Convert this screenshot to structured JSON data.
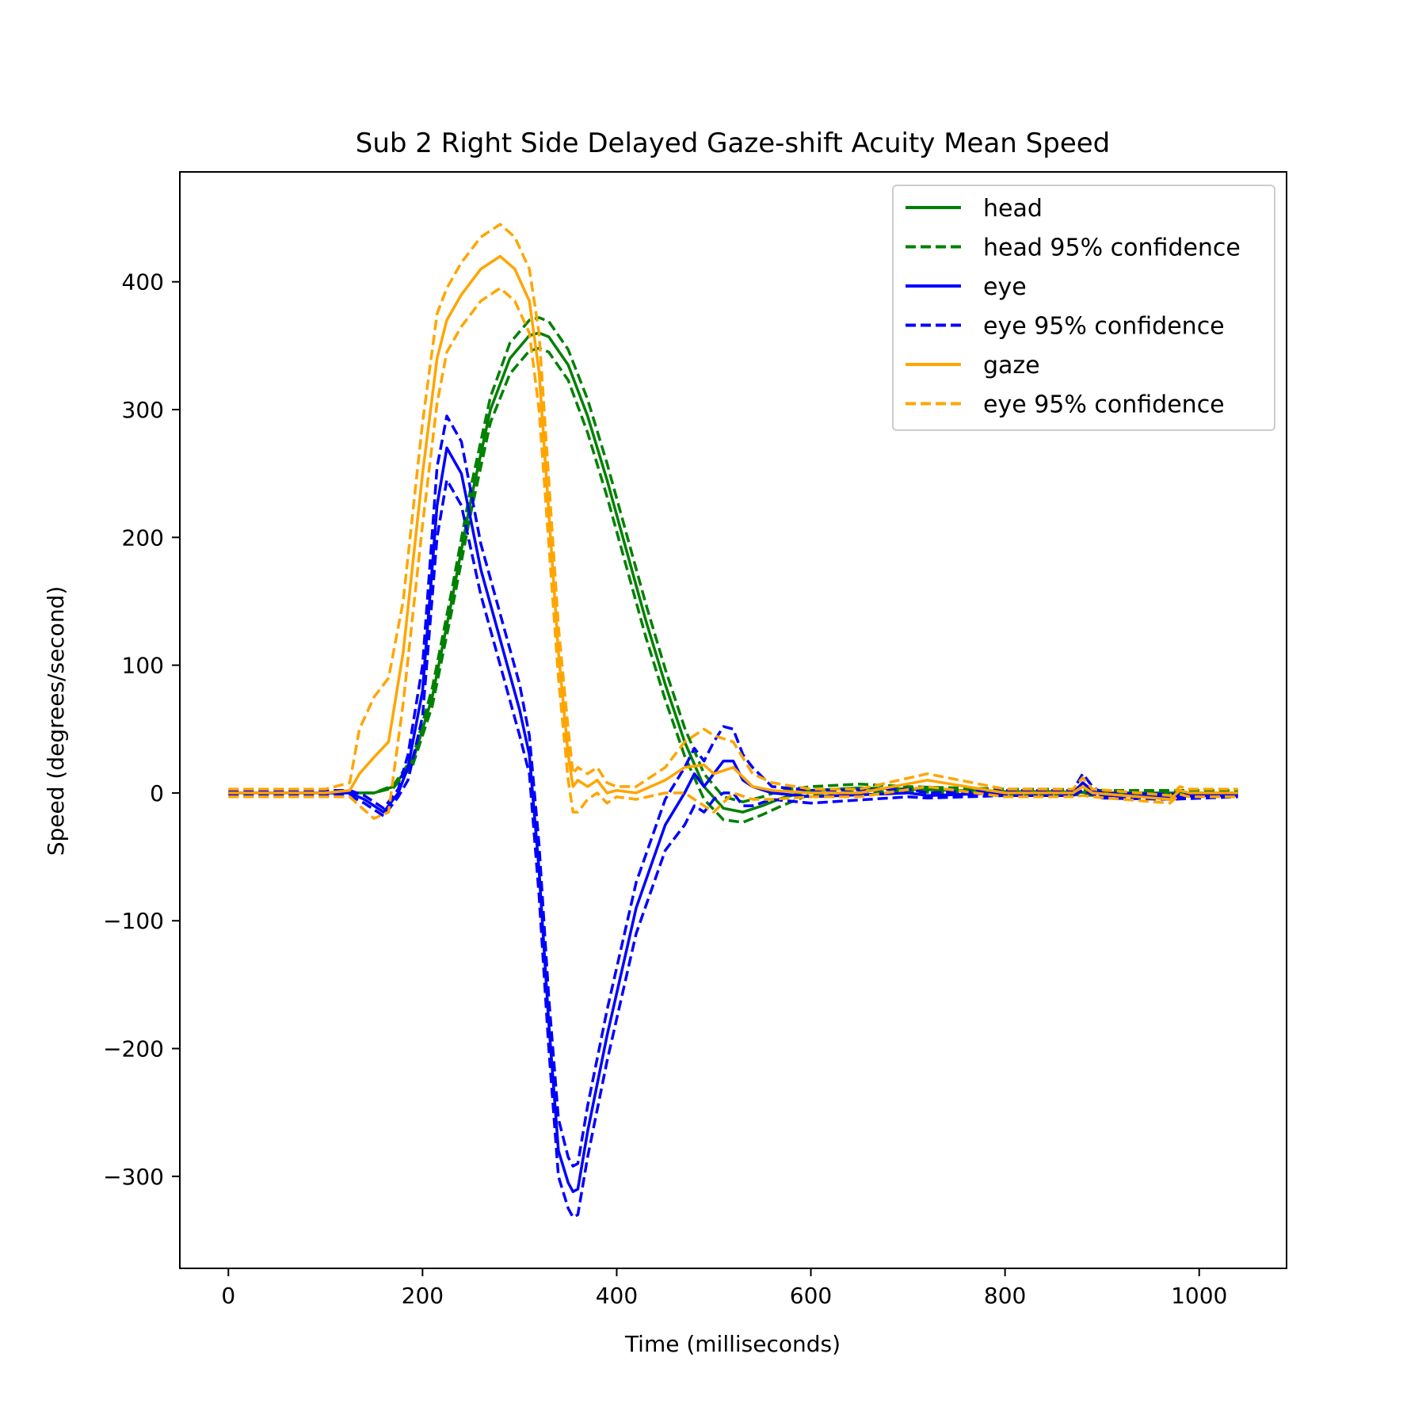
{
  "chart_data": {
    "type": "line",
    "title": "Sub 2 Right Side Delayed Gaze-shift Acuity Mean Speed",
    "xlabel": "Time (milliseconds)",
    "ylabel": "Speed (degrees/second)",
    "xlim": [
      -50,
      1090
    ],
    "ylim": [
      -372,
      486
    ],
    "xticks": [
      0,
      200,
      400,
      600,
      800,
      1000
    ],
    "xtick_labels": [
      "0",
      "200",
      "400",
      "600",
      "800",
      "1000"
    ],
    "yticks": [
      -300,
      -200,
      -100,
      0,
      100,
      200,
      300,
      400
    ],
    "ytick_labels": [
      "−300",
      "−200",
      "−100",
      "0",
      "100",
      "200",
      "300",
      "400"
    ],
    "grid": false,
    "legend_position": "top-right",
    "colors": {
      "head": "#008000",
      "eye": "#0000ff",
      "gaze": "#ffa500"
    },
    "series": [
      {
        "name": "head",
        "color": "#008000",
        "style": "solid",
        "x": [
          0,
          100,
          150,
          170,
          190,
          210,
          230,
          250,
          270,
          290,
          310,
          320,
          330,
          350,
          370,
          390,
          410,
          430,
          450,
          470,
          490,
          510,
          530,
          550,
          570,
          600,
          650,
          700,
          750,
          800,
          850,
          900,
          950,
          1000,
          1040
        ],
        "y": [
          0,
          0,
          0,
          5,
          25,
          75,
          150,
          230,
          300,
          340,
          358,
          360,
          357,
          335,
          295,
          245,
          190,
          135,
          85,
          40,
          5,
          -12,
          -15,
          -10,
          -4,
          2,
          4,
          3,
          2,
          1,
          1,
          0,
          0,
          0,
          0
        ]
      },
      {
        "name": "head 95% confidence",
        "color": "#008000",
        "style": "dashed",
        "x": [
          0,
          100,
          150,
          170,
          190,
          210,
          230,
          250,
          270,
          290,
          310,
          320,
          330,
          350,
          370,
          390,
          410,
          430,
          450,
          470,
          490,
          510,
          530,
          550,
          570,
          600,
          650,
          700,
          750,
          800,
          850,
          900,
          950,
          1000,
          1040
        ],
        "y": [
          0,
          0,
          0,
          6,
          28,
          82,
          158,
          240,
          310,
          352,
          370,
          372,
          369,
          347,
          308,
          258,
          203,
          148,
          97,
          51,
          15,
          -3,
          -7,
          -3,
          2,
          5,
          7,
          5,
          4,
          3,
          3,
          2,
          2,
          2,
          2
        ]
      },
      {
        "name": "head 95% confidence (lower)",
        "color": "#008000",
        "style": "dashed",
        "x": [
          0,
          100,
          150,
          170,
          190,
          210,
          230,
          250,
          270,
          290,
          310,
          320,
          330,
          350,
          370,
          390,
          410,
          430,
          450,
          470,
          490,
          510,
          530,
          550,
          570,
          600,
          650,
          700,
          750,
          800,
          850,
          900,
          950,
          1000,
          1040
        ],
        "y": [
          0,
          0,
          0,
          4,
          22,
          68,
          142,
          220,
          290,
          328,
          346,
          348,
          345,
          323,
          282,
          232,
          177,
          122,
          73,
          29,
          -5,
          -21,
          -23,
          -17,
          -10,
          -1,
          1,
          1,
          0,
          -1,
          -1,
          -2,
          -2,
          -2,
          -2
        ]
      },
      {
        "name": "eye",
        "color": "#0000ff",
        "style": "solid",
        "x": [
          0,
          50,
          100,
          125,
          140,
          160,
          175,
          185,
          200,
          215,
          225,
          240,
          260,
          280,
          300,
          310,
          320,
          330,
          340,
          350,
          355,
          360,
          370,
          390,
          420,
          450,
          470,
          480,
          490,
          500,
          510,
          520,
          530,
          540,
          560,
          600,
          700,
          720,
          800,
          870,
          880,
          890,
          900,
          970,
          1040
        ],
        "y": [
          0,
          0,
          0,
          0,
          -5,
          -15,
          0,
          20,
          80,
          225,
          270,
          250,
          175,
          120,
          65,
          30,
          -60,
          -180,
          -280,
          -305,
          -312,
          -310,
          -265,
          -190,
          -90,
          -25,
          0,
          15,
          5,
          15,
          25,
          25,
          10,
          5,
          0,
          -3,
          0,
          -2,
          0,
          0,
          8,
          2,
          -2,
          -3,
          -1
        ]
      },
      {
        "name": "eye 95% confidence",
        "color": "#0000ff",
        "style": "dashed",
        "x": [
          0,
          50,
          100,
          125,
          140,
          160,
          175,
          185,
          200,
          215,
          225,
          240,
          260,
          280,
          300,
          310,
          320,
          330,
          340,
          350,
          355,
          360,
          370,
          390,
          420,
          450,
          470,
          480,
          490,
          500,
          510,
          520,
          530,
          540,
          560,
          600,
          700,
          720,
          800,
          870,
          880,
          890,
          900,
          970,
          1040
        ],
        "y": [
          2,
          2,
          2,
          2,
          -2,
          -12,
          3,
          30,
          100,
          255,
          295,
          275,
          195,
          140,
          85,
          45,
          -40,
          -160,
          -255,
          -285,
          -292,
          -290,
          -245,
          -170,
          -70,
          -5,
          20,
          35,
          25,
          40,
          52,
          50,
          30,
          20,
          5,
          2,
          3,
          0,
          2,
          2,
          15,
          5,
          0,
          -1,
          0
        ]
      },
      {
        "name": "eye 95% confidence (lower)",
        "color": "#0000ff",
        "style": "dashed",
        "x": [
          0,
          50,
          100,
          125,
          140,
          160,
          175,
          185,
          200,
          215,
          225,
          240,
          260,
          280,
          300,
          310,
          320,
          330,
          340,
          350,
          355,
          360,
          370,
          390,
          420,
          450,
          470,
          480,
          490,
          500,
          510,
          520,
          530,
          540,
          560,
          600,
          700,
          720,
          800,
          870,
          880,
          890,
          900,
          970,
          1040
        ],
        "y": [
          -2,
          -2,
          -2,
          -2,
          -8,
          -18,
          -3,
          10,
          60,
          200,
          245,
          225,
          155,
          100,
          45,
          15,
          -80,
          -200,
          -300,
          -325,
          -332,
          -330,
          -285,
          -210,
          -110,
          -45,
          -25,
          -10,
          -15,
          -5,
          0,
          0,
          -10,
          -10,
          -5,
          -8,
          -3,
          -4,
          -2,
          -2,
          2,
          -1,
          -4,
          -5,
          -3
        ]
      },
      {
        "name": "gaze",
        "color": "#ffa500",
        "style": "solid",
        "x": [
          0,
          50,
          100,
          125,
          135,
          150,
          165,
          180,
          200,
          215,
          225,
          240,
          260,
          280,
          295,
          310,
          320,
          330,
          340,
          350,
          355,
          360,
          370,
          380,
          390,
          400,
          420,
          450,
          470,
          490,
          500,
          520,
          540,
          560,
          600,
          650,
          720,
          800,
          870,
          880,
          890,
          970,
          980,
          990,
          1040
        ],
        "y": [
          0,
          0,
          0,
          2,
          15,
          28,
          40,
          110,
          250,
          340,
          370,
          390,
          410,
          420,
          410,
          385,
          330,
          220,
          110,
          30,
          5,
          10,
          5,
          10,
          0,
          2,
          0,
          10,
          20,
          22,
          15,
          20,
          5,
          2,
          0,
          0,
          10,
          0,
          0,
          5,
          0,
          -5,
          2,
          0,
          0
        ]
      },
      {
        "name": "eye 95% confidence",
        "color": "#ffa500",
        "style": "dashed",
        "x": [
          0,
          50,
          100,
          125,
          135,
          150,
          165,
          180,
          200,
          215,
          225,
          240,
          260,
          280,
          295,
          310,
          320,
          330,
          340,
          350,
          355,
          360,
          370,
          380,
          390,
          400,
          420,
          450,
          470,
          490,
          500,
          520,
          540,
          560,
          600,
          650,
          720,
          800,
          870,
          880,
          890,
          970,
          980,
          990,
          1040
        ],
        "y": [
          3,
          3,
          3,
          8,
          50,
          75,
          90,
          150,
          290,
          375,
          395,
          415,
          435,
          445,
          435,
          410,
          360,
          245,
          130,
          50,
          15,
          20,
          15,
          20,
          8,
          5,
          5,
          20,
          40,
          50,
          45,
          40,
          15,
          8,
          3,
          3,
          15,
          3,
          3,
          12,
          3,
          -2,
          5,
          3,
          3
        ]
      },
      {
        "name": "eye 95% confidence (lower)",
        "color": "#ffa500",
        "style": "dashed",
        "x": [
          0,
          50,
          100,
          125,
          135,
          150,
          165,
          180,
          200,
          215,
          225,
          240,
          260,
          280,
          295,
          310,
          320,
          330,
          340,
          350,
          355,
          360,
          370,
          380,
          390,
          400,
          420,
          450,
          470,
          490,
          500,
          520,
          540,
          560,
          600,
          650,
          720,
          800,
          870,
          880,
          890,
          970,
          980,
          990,
          1040
        ],
        "y": [
          -3,
          -3,
          -3,
          -3,
          -10,
          -20,
          -15,
          70,
          210,
          305,
          345,
          365,
          385,
          395,
          385,
          360,
          300,
          195,
          90,
          10,
          -15,
          -15,
          -5,
          0,
          -8,
          -3,
          -5,
          0,
          0,
          -10,
          -15,
          0,
          -5,
          -5,
          -3,
          -3,
          5,
          -3,
          -3,
          -2,
          -3,
          -8,
          -1,
          -3,
          -3
        ]
      }
    ],
    "legend": [
      {
        "label": "head",
        "color": "#008000",
        "style": "solid"
      },
      {
        "label": "head 95% confidence",
        "color": "#008000",
        "style": "dashed"
      },
      {
        "label": "eye",
        "color": "#0000ff",
        "style": "solid"
      },
      {
        "label": "eye 95% confidence",
        "color": "#0000ff",
        "style": "dashed"
      },
      {
        "label": "gaze",
        "color": "#ffa500",
        "style": "solid"
      },
      {
        "label": "eye 95% confidence",
        "color": "#ffa500",
        "style": "dashed"
      }
    ]
  }
}
